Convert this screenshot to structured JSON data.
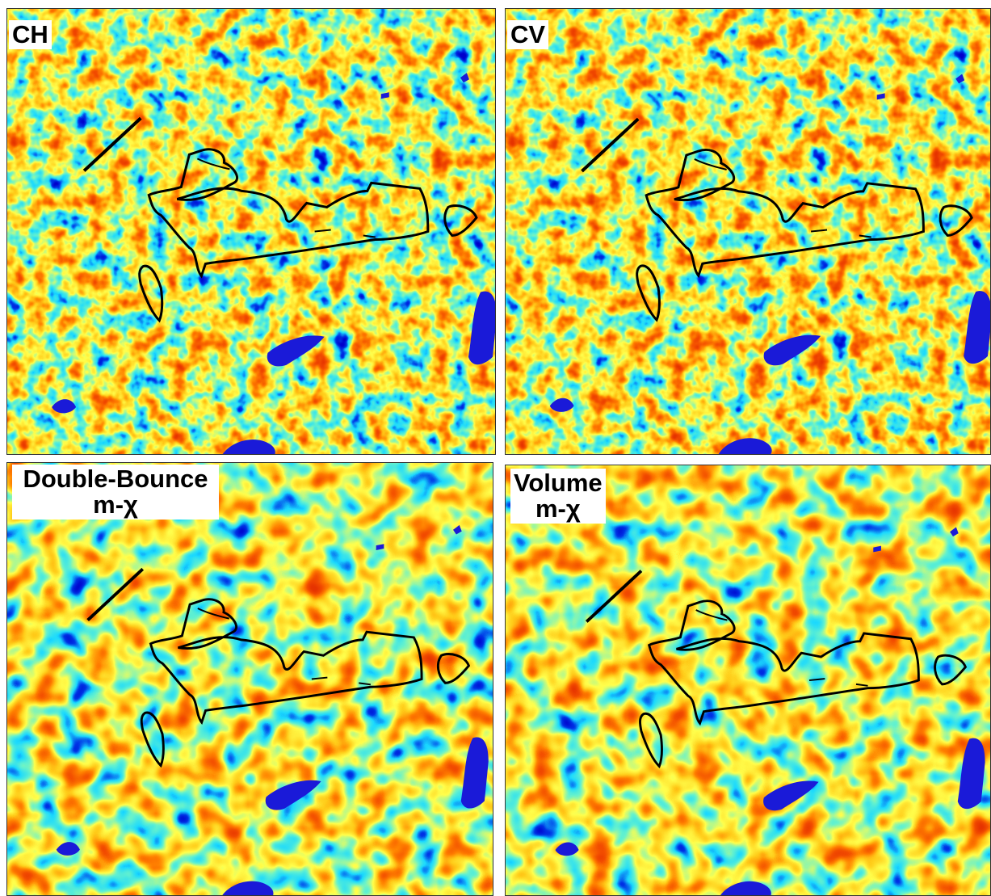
{
  "panels": [
    {
      "label": "CH"
    },
    {
      "label": "CV"
    },
    {
      "label": "Double-Bounce",
      "sublabel": "m-χ"
    },
    {
      "label": "Volume",
      "sublabel": "m-χ"
    }
  ]
}
